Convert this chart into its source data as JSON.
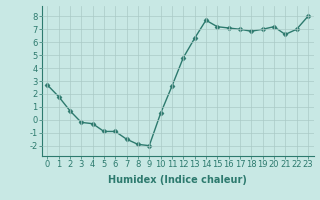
{
  "x": [
    0,
    1,
    2,
    3,
    4,
    5,
    6,
    7,
    8,
    9,
    10,
    11,
    12,
    13,
    14,
    15,
    16,
    17,
    18,
    19,
    20,
    21,
    22,
    23
  ],
  "y": [
    2.7,
    1.8,
    0.7,
    -0.2,
    -0.3,
    -0.9,
    -0.9,
    -1.5,
    -1.9,
    -2.0,
    0.5,
    2.6,
    4.8,
    6.3,
    7.7,
    7.2,
    7.1,
    7.0,
    6.85,
    7.0,
    7.2,
    6.6,
    7.0,
    8.0
  ],
  "line_color": "#2d7a6e",
  "bg_color": "#c8e8e4",
  "grid_color": "#aacac6",
  "xlabel": "Humidex (Indice chaleur)",
  "ylim": [
    -2.8,
    8.8
  ],
  "xlim": [
    -0.5,
    23.5
  ],
  "yticks": [
    -2,
    -1,
    0,
    1,
    2,
    3,
    4,
    5,
    6,
    7,
    8
  ],
  "xticks": [
    0,
    1,
    2,
    3,
    4,
    5,
    6,
    7,
    8,
    9,
    10,
    11,
    12,
    13,
    14,
    15,
    16,
    17,
    18,
    19,
    20,
    21,
    22,
    23
  ],
  "xlabel_fontsize": 7,
  "tick_fontsize": 6,
  "line_width": 1.0,
  "marker": "D",
  "marker_size": 2.5
}
